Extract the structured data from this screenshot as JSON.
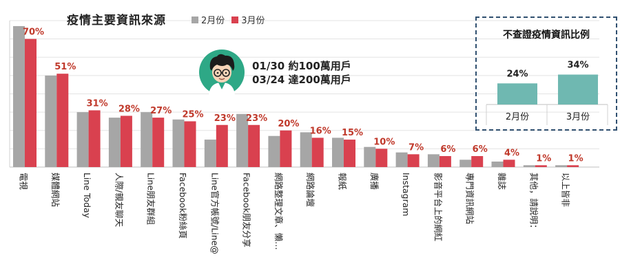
{
  "title": "疫情主要資訊來源",
  "legend": {
    "feb": "2月份",
    "mar": "3月份"
  },
  "colors": {
    "feb": "#a6a6a6",
    "mar": "#d9414f",
    "inset_bar": "#6fb8b1",
    "label": "#c0392b"
  },
  "note": {
    "line1": "01/30 約100萬用戶",
    "line2": "03/24 達200萬用戶"
  },
  "chart_data": [
    {
      "type": "bar",
      "title": "疫情主要資訊來源",
      "categories": [
        "電視",
        "媒體網站",
        "Line Today",
        "人際/親友聊天",
        "Line朋友群組",
        "Facebook粉絲頁",
        "Line官方帳號/Line@",
        "Facebook朋友分享",
        "網路整理文章、懶…",
        "網路論壇",
        "報紙",
        "廣播",
        "Instagram",
        "影音平台上的網紅",
        "專門資訊網站",
        "雜誌",
        "其他，請說明：",
        "以上皆非"
      ],
      "series": [
        {
          "name": "2月份",
          "values": [
            77,
            50,
            30,
            27,
            30,
            26,
            15,
            29,
            17,
            19,
            16,
            11,
            8,
            7,
            4,
            3,
            1,
            1
          ]
        },
        {
          "name": "3月份",
          "values": [
            70,
            51,
            31,
            28,
            27,
            25,
            23,
            23,
            20,
            16,
            15,
            10,
            7,
            6,
            6,
            4,
            1,
            1
          ]
        }
      ],
      "data_labels": [
        "70%",
        "51%",
        "31%",
        "28%",
        "27%",
        "25%",
        "23%",
        "23%",
        "20%",
        "16%",
        "15%",
        "10%",
        "7%",
        "6%",
        "6%",
        "4%",
        "1%",
        "1%"
      ],
      "ylim": [
        0,
        80
      ],
      "grid": true,
      "legend_position": "top"
    },
    {
      "type": "bar",
      "title": "不查證疫情資訊比例",
      "categories": [
        "2月份",
        "3月份"
      ],
      "values": [
        24,
        34
      ],
      "data_labels": [
        "24%",
        "34%"
      ],
      "ylim": [
        0,
        50
      ]
    }
  ]
}
